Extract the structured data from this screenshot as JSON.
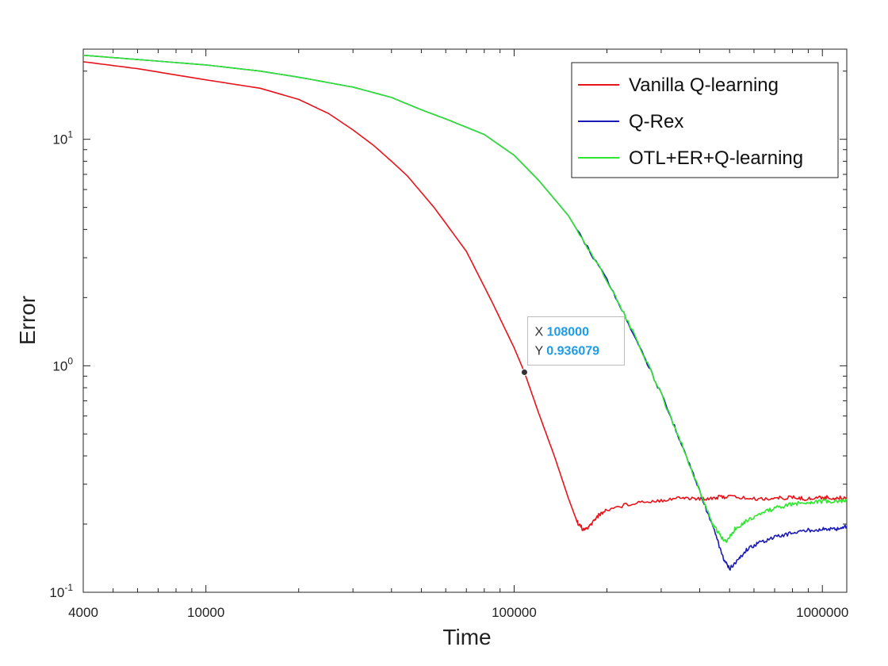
{
  "chart_data": {
    "type": "line",
    "xscale": "log",
    "yscale": "log",
    "xlabel": "Time",
    "ylabel": "Error",
    "xlim": [
      4000,
      1200000
    ],
    "ylim": [
      0.1,
      25
    ],
    "grid": false,
    "legend_position": "top-right",
    "x_ticks": [
      {
        "value": 4000,
        "label": "4000"
      },
      {
        "value": 10000,
        "label": "10000"
      },
      {
        "value": 100000,
        "label": "100000"
      },
      {
        "value": 1000000,
        "label": "1000000"
      }
    ],
    "y_ticks": [
      {
        "value": 0.1,
        "base": "10",
        "exp": "-1"
      },
      {
        "value": 1,
        "base": "10",
        "exp": "0"
      },
      {
        "value": 10,
        "base": "10",
        "exp": "1"
      }
    ],
    "series": [
      {
        "name": "Vanilla Q-learning",
        "color": "#e8141b",
        "x": [
          4000,
          6000,
          10000,
          15000,
          20000,
          25000,
          30000,
          35000,
          40000,
          45000,
          55000,
          70000,
          85000,
          100000,
          108000,
          120000,
          135000,
          150000,
          160000,
          168000,
          175000,
          185000,
          200000,
          250000,
          300000,
          350000,
          400000,
          450000,
          500000,
          600000,
          700000,
          800000,
          900000,
          1000000,
          1100000,
          1200000
        ],
        "y": [
          22.0,
          20.5,
          18.3,
          16.8,
          15.0,
          13.0,
          11.0,
          9.4,
          8.0,
          6.9,
          5.0,
          3.2,
          1.9,
          1.2,
          0.936,
          0.62,
          0.4,
          0.26,
          0.205,
          0.188,
          0.194,
          0.215,
          0.232,
          0.25,
          0.255,
          0.262,
          0.258,
          0.262,
          0.265,
          0.258,
          0.26,
          0.262,
          0.258,
          0.263,
          0.26,
          0.262
        ]
      },
      {
        "name": "Q-Rex",
        "color": "#1a1ab8",
        "x": [
          4000,
          6000,
          10000,
          15000,
          20000,
          30000,
          40000,
          50000,
          60000,
          80000,
          100000,
          120000,
          150000,
          200000,
          250000,
          300000,
          350000,
          400000,
          450000,
          480000,
          500000,
          530000,
          570000,
          620000,
          700000,
          800000,
          900000,
          1000000,
          1100000,
          1200000
        ],
        "y": [
          23.5,
          22.5,
          21.3,
          20.0,
          18.8,
          17.0,
          15.3,
          13.5,
          12.3,
          10.5,
          8.5,
          6.6,
          4.6,
          2.4,
          1.3,
          0.75,
          0.45,
          0.28,
          0.18,
          0.138,
          0.127,
          0.138,
          0.155,
          0.165,
          0.175,
          0.183,
          0.188,
          0.19,
          0.19,
          0.195
        ]
      },
      {
        "name": "OTL+ER+Q-learning",
        "color": "#2ee62e",
        "x": [
          4000,
          6000,
          10000,
          15000,
          20000,
          30000,
          40000,
          50000,
          60000,
          80000,
          100000,
          120000,
          150000,
          200000,
          250000,
          300000,
          350000,
          400000,
          440000,
          470000,
          490000,
          520000,
          560000,
          620000,
          700000,
          800000,
          900000,
          1000000,
          1100000,
          1200000
        ],
        "y": [
          23.5,
          22.5,
          21.3,
          20.0,
          18.8,
          17.0,
          15.3,
          13.5,
          12.3,
          10.5,
          8.5,
          6.6,
          4.6,
          2.4,
          1.3,
          0.75,
          0.45,
          0.28,
          0.2,
          0.175,
          0.168,
          0.19,
          0.205,
          0.22,
          0.235,
          0.245,
          0.25,
          0.252,
          0.25,
          0.255
        ]
      }
    ],
    "datatip": {
      "x_label": "X",
      "x_value": "108000",
      "y_label": "Y",
      "y_value": "0.936079",
      "x": 108000,
      "y": 0.936079,
      "value_color": "#1e9be6"
    }
  }
}
